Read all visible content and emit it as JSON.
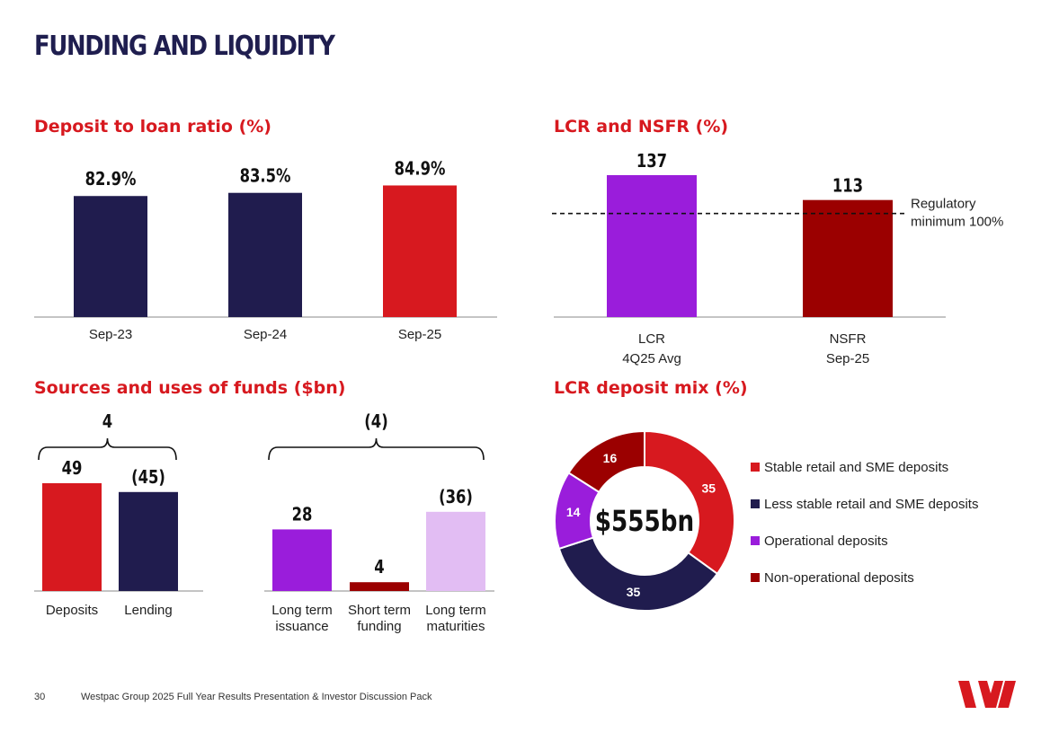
{
  "page": {
    "title": "FUNDING AND LIQUIDITY",
    "footer_page": "30",
    "footer_text": "Westpac Group 2025 Full Year Results Presentation & Investor Discussion Pack",
    "logo": "westpac-logo"
  },
  "colors": {
    "navy": "#201c4e",
    "red": "#d7191f",
    "purple": "#9a1ddb",
    "dark_red": "#9b0000",
    "lavender": "#e2bdf3",
    "heading_red": "#d7191f"
  },
  "chart_data": [
    {
      "type": "bar",
      "title": "Deposit to loan ratio (%)",
      "categories": [
        "Sep-23",
        "Sep-24",
        "Sep-25"
      ],
      "values": [
        82.9,
        83.5,
        84.9
      ],
      "labels": [
        "82.9%",
        "83.5%",
        "84.9%"
      ],
      "ylim": [
        60,
        86
      ]
    },
    {
      "type": "bar",
      "title": "LCR and NSFR (%)",
      "categories": [
        [
          "LCR",
          "4Q25 Avg"
        ],
        [
          "NSFR",
          "Sep-25"
        ]
      ],
      "values": [
        137,
        113
      ],
      "labels": [
        "137",
        "113"
      ],
      "ylim": [
        0,
        137
      ],
      "reference_line": {
        "value": 100,
        "label_lines": [
          "Regulatory",
          "minimum 100%"
        ]
      }
    },
    {
      "type": "bar",
      "title": "Sources and uses of funds ($bn)",
      "categories": [
        [
          "Deposits"
        ],
        [
          "Lending"
        ],
        [
          "Long term",
          "issuance"
        ],
        [
          "Short term",
          "funding"
        ],
        [
          "Long term",
          "maturities"
        ]
      ],
      "values": [
        49,
        45,
        28,
        4,
        36
      ],
      "labels": [
        "49",
        "(45)",
        "28",
        "4",
        "(36)"
      ],
      "group_totals": [
        {
          "label": "4",
          "members": [
            0,
            1
          ]
        },
        {
          "label": "(4)",
          "members": [
            2,
            3,
            4
          ]
        }
      ],
      "ylim": [
        0,
        49
      ]
    },
    {
      "type": "pie",
      "title": "LCR deposit mix (%)",
      "center_label": "$555bn",
      "slices": [
        {
          "name": "Stable retail and SME deposits",
          "value": 35
        },
        {
          "name": "Less stable retail and SME deposits",
          "value": 35
        },
        {
          "name": "Operational deposits",
          "value": 14
        },
        {
          "name": "Non-operational deposits",
          "value": 16
        }
      ]
    }
  ]
}
